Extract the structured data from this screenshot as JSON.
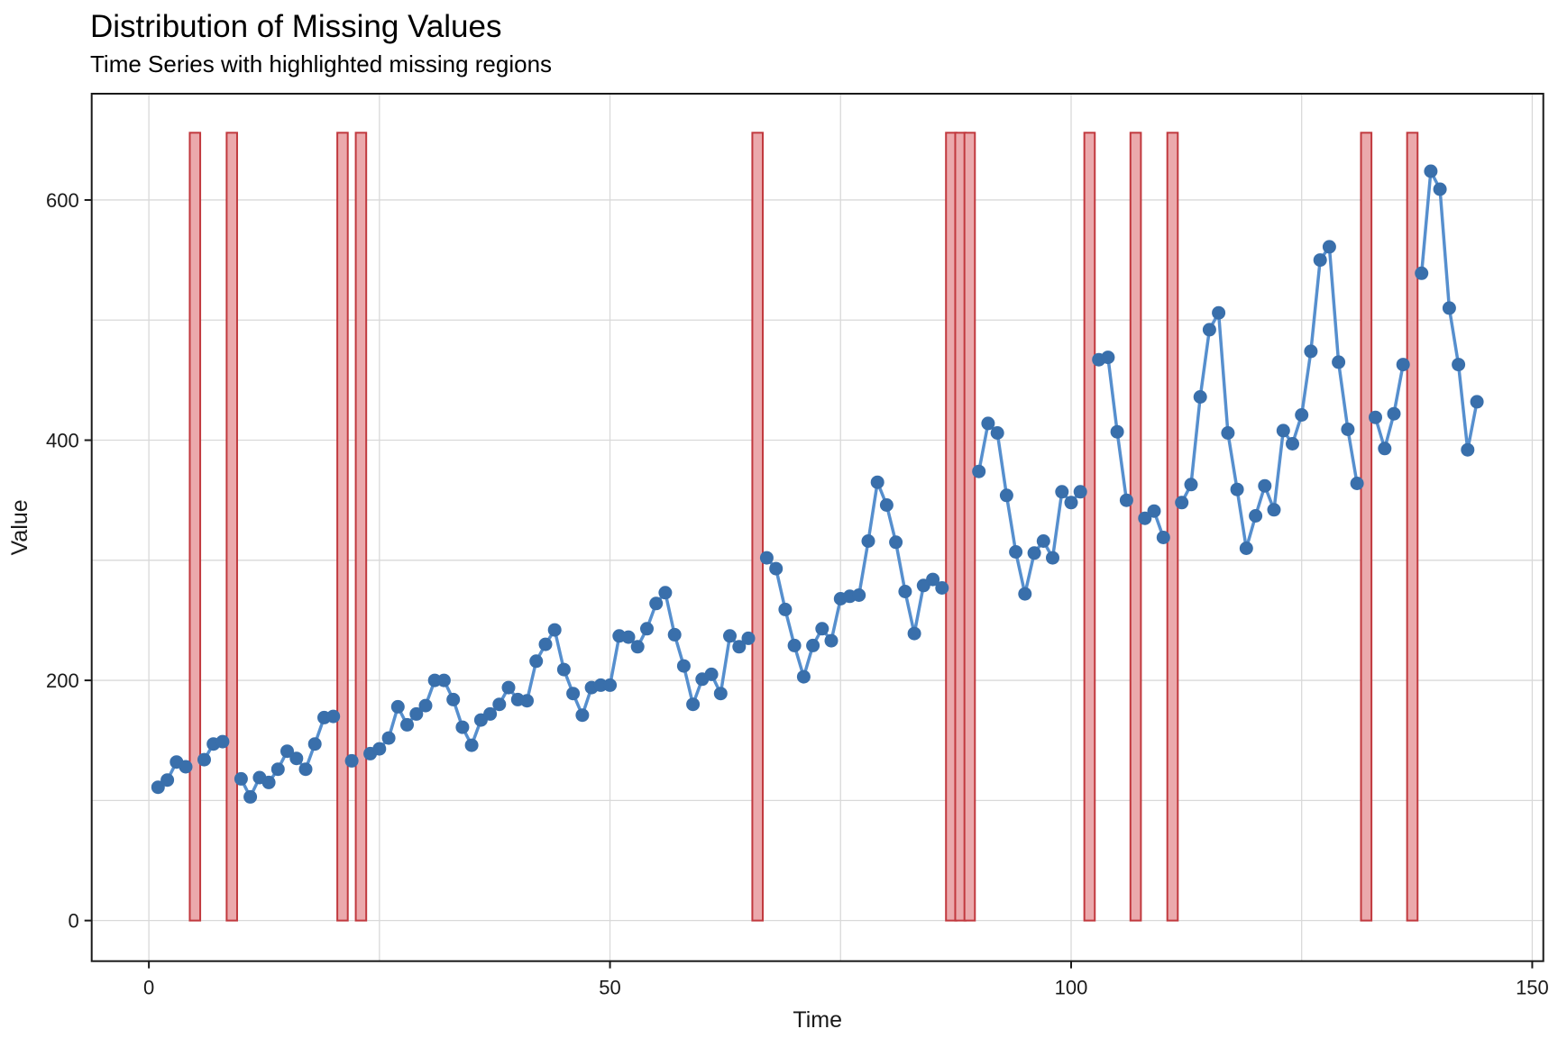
{
  "header": {
    "title": "Distribution of Missing Values",
    "subtitle": "Time Series with highlighted missing regions"
  },
  "chart_data": {
    "type": "line",
    "title": "Distribution of Missing Values",
    "subtitle": "Time Series with highlighted missing regions",
    "xlabel": "Time",
    "ylabel": "Value",
    "xlim": [
      -6.2,
      151.2
    ],
    "ylim": [
      -33.8,
      688.5
    ],
    "x_ticks": [
      0,
      50,
      100,
      150
    ],
    "x_tick_labels": [
      "0",
      "50",
      "100",
      "150"
    ],
    "y_ticks": [
      0,
      200,
      400,
      600
    ],
    "y_tick_labels": [
      "0",
      "200",
      "400",
      "600"
    ],
    "x_gridlines": [
      0,
      25,
      50,
      75,
      100,
      125,
      150
    ],
    "y_gridlines": [
      0,
      100,
      200,
      300,
      400,
      500,
      600
    ],
    "grid": "on",
    "legend": "none",
    "series_name": "value",
    "points": [
      [
        1,
        111
      ],
      [
        2,
        117
      ],
      [
        3,
        132
      ],
      [
        4,
        128
      ],
      [
        6,
        134
      ],
      [
        7,
        147
      ],
      [
        8,
        149
      ],
      [
        10,
        118
      ],
      [
        11,
        103
      ],
      [
        12,
        119
      ],
      [
        13,
        115
      ],
      [
        14,
        126
      ],
      [
        15,
        141
      ],
      [
        16,
        135
      ],
      [
        17,
        126
      ],
      [
        18,
        147
      ],
      [
        19,
        169
      ],
      [
        20,
        170
      ],
      [
        22,
        133
      ],
      [
        24,
        139
      ],
      [
        25,
        143
      ],
      [
        26,
        152
      ],
      [
        27,
        178
      ],
      [
        28,
        163
      ],
      [
        29,
        172
      ],
      [
        30,
        179
      ],
      [
        31,
        200
      ],
      [
        32,
        200
      ],
      [
        33,
        184
      ],
      [
        34,
        161
      ],
      [
        35,
        146
      ],
      [
        36,
        167
      ],
      [
        37,
        172
      ],
      [
        38,
        180
      ],
      [
        39,
        194
      ],
      [
        40,
        184
      ],
      [
        41,
        183
      ],
      [
        42,
        216
      ],
      [
        43,
        230
      ],
      [
        44,
        242
      ],
      [
        45,
        209
      ],
      [
        46,
        189
      ],
      [
        47,
        171
      ],
      [
        48,
        194
      ],
      [
        49,
        196
      ],
      [
        50,
        196
      ],
      [
        51,
        237
      ],
      [
        52,
        236
      ],
      [
        53,
        228
      ],
      [
        54,
        243
      ],
      [
        55,
        264
      ],
      [
        56,
        273
      ],
      [
        57,
        238
      ],
      [
        58,
        212
      ],
      [
        59,
        180
      ],
      [
        60,
        201
      ],
      [
        61,
        205
      ],
      [
        62,
        189
      ],
      [
        63,
        237
      ],
      [
        64,
        228
      ],
      [
        65,
        235
      ],
      [
        67,
        302
      ],
      [
        68,
        293
      ],
      [
        69,
        259
      ],
      [
        70,
        229
      ],
      [
        71,
        203
      ],
      [
        72,
        229
      ],
      [
        73,
        243
      ],
      [
        74,
        233
      ],
      [
        75,
        268
      ],
      [
        76,
        270
      ],
      [
        77,
        271
      ],
      [
        78,
        316
      ],
      [
        79,
        365
      ],
      [
        80,
        346
      ],
      [
        81,
        315
      ],
      [
        82,
        274
      ],
      [
        83,
        239
      ],
      [
        84,
        279
      ],
      [
        85,
        284
      ],
      [
        86,
        277
      ],
      [
        90,
        374
      ],
      [
        91,
        414
      ],
      [
        92,
        406
      ],
      [
        93,
        354
      ],
      [
        94,
        307
      ],
      [
        95,
        272
      ],
      [
        96,
        306
      ],
      [
        97,
        316
      ],
      [
        98,
        302
      ],
      [
        99,
        357
      ],
      [
        100,
        348
      ],
      [
        101,
        357
      ],
      [
        103,
        467
      ],
      [
        104,
        469
      ],
      [
        105,
        407
      ],
      [
        106,
        350
      ],
      [
        108,
        335
      ],
      [
        109,
        341
      ],
      [
        110,
        319
      ],
      [
        112,
        348
      ],
      [
        113,
        363
      ],
      [
        114,
        436
      ],
      [
        115,
        492
      ],
      [
        116,
        506
      ],
      [
        117,
        406
      ],
      [
        118,
        359
      ],
      [
        119,
        310
      ],
      [
        120,
        337
      ],
      [
        121,
        362
      ],
      [
        122,
        342
      ],
      [
        123,
        408
      ],
      [
        124,
        397
      ],
      [
        125,
        421
      ],
      [
        126,
        474
      ],
      [
        127,
        550
      ],
      [
        128,
        561
      ],
      [
        129,
        465
      ],
      [
        130,
        409
      ],
      [
        131,
        364
      ],
      [
        133,
        419
      ],
      [
        134,
        393
      ],
      [
        135,
        422
      ],
      [
        136,
        463
      ],
      [
        138,
        539
      ],
      [
        139,
        624
      ],
      [
        140,
        609
      ],
      [
        141,
        510
      ],
      [
        142,
        463
      ],
      [
        143,
        392
      ],
      [
        144,
        432
      ]
    ],
    "missing_time_indices": [
      5,
      9,
      21,
      23,
      66,
      87,
      88,
      89,
      102,
      107,
      111,
      132,
      137
    ],
    "missing_region_value_span": [
      0,
      656
    ],
    "colors": {
      "line": "#568FCE",
      "point": "#396FAB",
      "missing_fill": "#EBA9AC",
      "missing_border": "#C1393E",
      "grid": "#D9D9D9",
      "axis": "#1A1A1A",
      "background": "#FFFFFF"
    }
  }
}
